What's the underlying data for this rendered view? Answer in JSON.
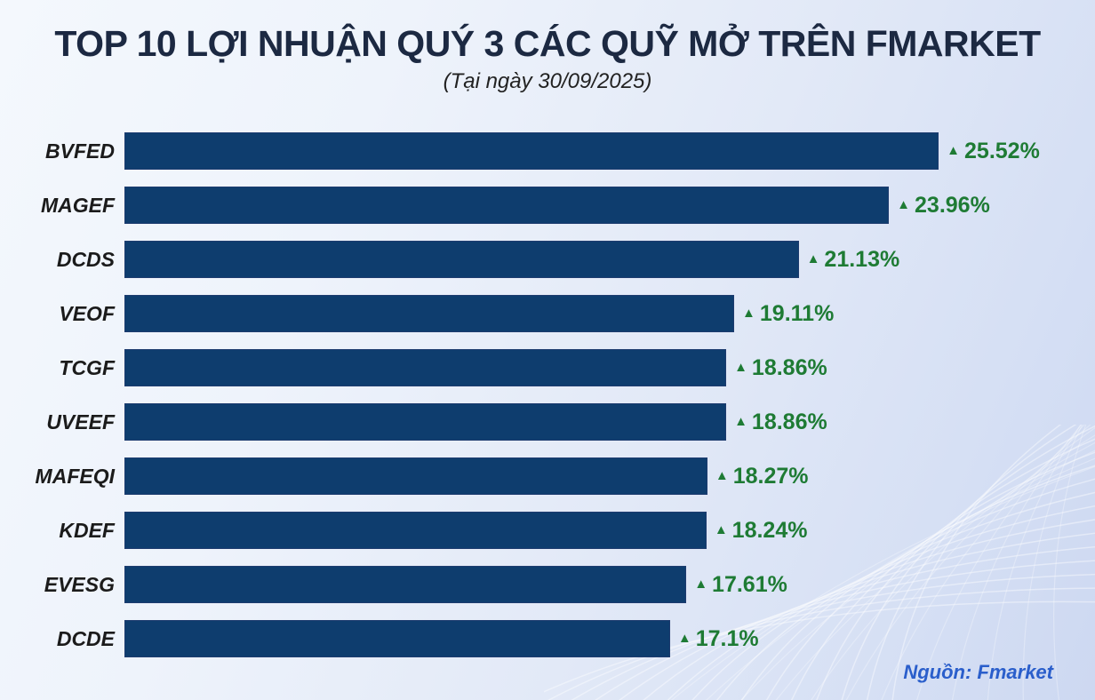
{
  "header": {
    "title": "TOP 10 LỢI NHUẬN QUÝ 3 CÁC QUỸ MỞ TRÊN FMARKET",
    "subtitle": "(Tại ngày 30/09/2025)"
  },
  "chart_data": {
    "type": "bar",
    "orientation": "horizontal",
    "title": "TOP 10 LỢI NHUẬN QUÝ 3 CÁC QUỸ MỞ TRÊN FMARKET",
    "subtitle": "(Tại ngày 30/09/2025)",
    "categories": [
      "BVFED",
      "MAGEF",
      "DCDS",
      "VEOF",
      "TCGF",
      "UVEEF",
      "MAFEQI",
      "KDEF",
      "EVESG",
      "DCDE"
    ],
    "values": [
      25.52,
      23.96,
      21.13,
      19.11,
      18.86,
      18.86,
      18.27,
      18.24,
      17.61,
      17.1
    ],
    "value_labels": [
      "25.52%",
      "23.96%",
      "21.13%",
      "19.11%",
      "18.86%",
      "18.86%",
      "18.27%",
      "18.24%",
      "17.61%",
      "17.1%"
    ],
    "up_marker": "▲",
    "xlim": [
      0,
      26
    ],
    "grid": false,
    "legend": false,
    "bar_color": "#0e3d6e",
    "value_color": "#1e7b34",
    "sorted": "descending"
  },
  "footer": {
    "source": "Nguồn: Fmarket"
  },
  "colors": {
    "title": "#1c2942",
    "bar": "#0e3d6e",
    "value_green": "#1e7b34",
    "source_blue": "#2a5ecb",
    "background_light": "#f4f8fd",
    "background_dark": "#cdd8f1"
  }
}
